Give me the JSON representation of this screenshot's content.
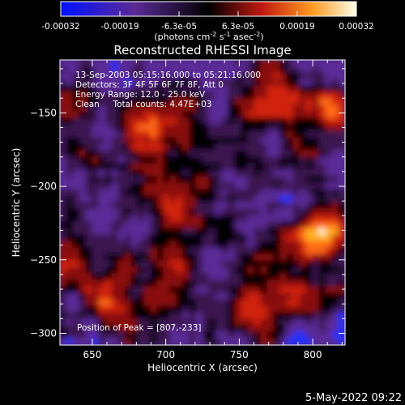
{
  "colorbar": {
    "ticks": [
      "-0.00032",
      "-0.00019",
      "-6.3e-05",
      "6.3e-05",
      "0.00019",
      "0.00032"
    ],
    "unit_label": "(photons cm",
    "unit_exp1": "-2",
    "unit_mid": " s",
    "unit_exp2": "-1",
    "unit_mid2": " asec",
    "unit_exp3": "-2",
    "unit_end": ")"
  },
  "plot": {
    "title": "Reconstructed RHESSI Image",
    "xlabel": "Heliocentric X (arcsec)",
    "ylabel": "Heliocentric Y (arcsec)",
    "info_lines": [
      "13-Sep-2003 05:15:16.000 to 05:21:16.000",
      "Detectors: 3F 4F 5F 6F 7F 8F, Att 0",
      "Energy Range: 12.0 - 25.0 keV",
      "Clean     Total counts: 4.47E+03"
    ],
    "peak_text": "Position of Peak = [807,-233]"
  },
  "footer": {
    "timestamp": "5-May-2022 09:22"
  },
  "chart_data": {
    "type": "heatmap",
    "title": "Reconstructed RHESSI Image",
    "xlabel": "Heliocentric X (arcsec)",
    "ylabel": "Heliocentric Y (arcsec)",
    "xlim": [
      628,
      822
    ],
    "ylim": [
      -308,
      -114
    ],
    "x_ticks": [
      650,
      700,
      750,
      800
    ],
    "y_ticks": [
      -150,
      -200,
      -250,
      -300
    ],
    "colorbar_range": [
      -0.00032,
      0.00032
    ],
    "peak": {
      "x": 807,
      "y": -233,
      "label": "Position of Peak = [807,-233]"
    },
    "colors": {
      "negative": "#2030ff",
      "low": "#5a2a96",
      "zero": "#000000",
      "mid": "#d02010",
      "high": "#ffb020",
      "max": "#ffffe0"
    },
    "hotspots": [
      {
        "x": 807,
        "y": -233,
        "level": 1.0
      },
      {
        "x": 692,
        "y": -160,
        "level": 0.85
      },
      {
        "x": 813,
        "y": -146,
        "level": 0.75
      },
      {
        "x": 775,
        "y": -138,
        "level": 0.7
      },
      {
        "x": 700,
        "y": -255,
        "level": 0.55
      },
      {
        "x": 710,
        "y": -215,
        "level": 0.55
      },
      {
        "x": 660,
        "y": -280,
        "level": 0.5
      },
      {
        "x": 760,
        "y": -290,
        "level": 0.5
      },
      {
        "x": 790,
        "y": -275,
        "level": 0.5
      }
    ]
  }
}
